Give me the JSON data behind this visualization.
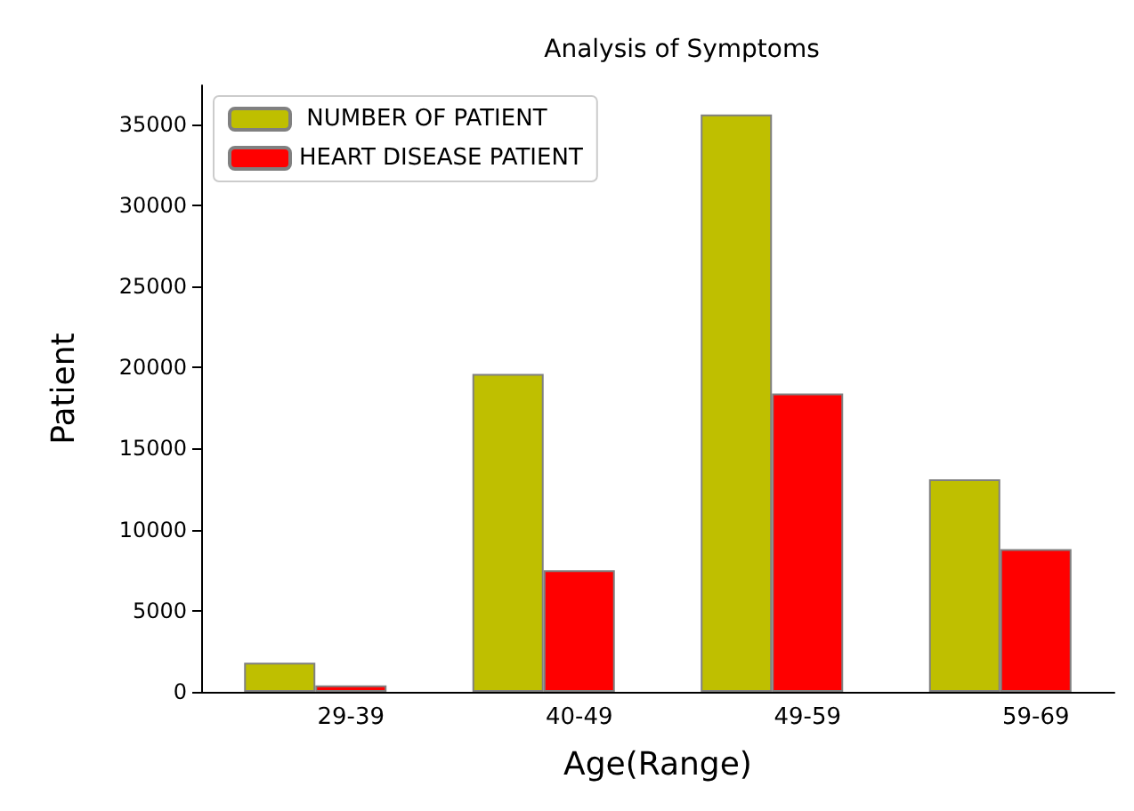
{
  "chart_data": {
    "type": "bar",
    "title": "Analysis of Symptoms",
    "xlabel": "Age(Range)",
    "ylabel": "Patient",
    "categories": [
      "29-39",
      "40-49",
      "49-59",
      "59-69"
    ],
    "series": [
      {
        "name": " NUMBER OF PATIENT",
        "color": "#bfbf00",
        "values": [
          1800,
          19600,
          35600,
          13100
        ]
      },
      {
        "name": "HEART DISEASE PATIENT",
        "color": "#ff0000",
        "values": [
          400,
          7500,
          18400,
          8800
        ]
      }
    ],
    "ylim": [
      0,
      37400
    ],
    "yticks": [
      0,
      5000,
      10000,
      15000,
      20000,
      25000,
      30000,
      35000
    ],
    "grid": false,
    "legend": "top left"
  }
}
